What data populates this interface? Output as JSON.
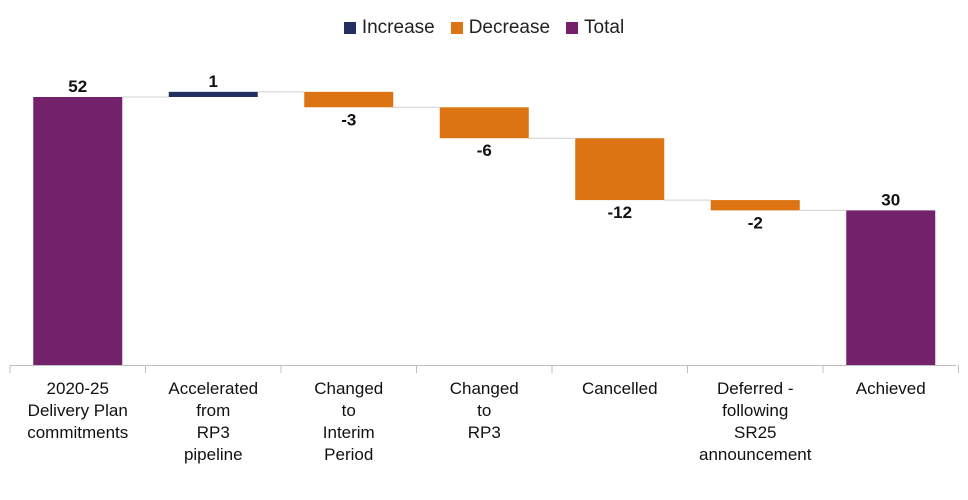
{
  "chart_data": {
    "type": "waterfall",
    "title": "",
    "xlabel": "",
    "ylabel": "",
    "ylim": [
      0,
      60
    ],
    "grid": false,
    "legend_position": "top-center",
    "legend": [
      {
        "name": "Increase",
        "color": "#232e63"
      },
      {
        "name": "Decrease",
        "color": "#dc7414"
      },
      {
        "name": "Total",
        "color": "#74216c"
      }
    ],
    "categories": [
      [
        "2020-25",
        "Delivery Plan",
        "commitments"
      ],
      [
        "Accelerated",
        "from",
        "RP3",
        "pipeline"
      ],
      [
        "Changed",
        "to",
        "Interim",
        "Period"
      ],
      [
        "Changed",
        "to",
        "RP3"
      ],
      [
        "Cancelled"
      ],
      [
        "Deferred -",
        "following",
        "SR25",
        "announcement"
      ],
      [
        "Achieved"
      ]
    ],
    "bars": [
      {
        "kind": "total",
        "value": 52,
        "label": "52"
      },
      {
        "kind": "increase",
        "value": 1,
        "label": "1"
      },
      {
        "kind": "decrease",
        "value": -3,
        "label": "-3"
      },
      {
        "kind": "decrease",
        "value": -6,
        "label": "-6"
      },
      {
        "kind": "decrease",
        "value": -12,
        "label": "-12"
      },
      {
        "kind": "decrease",
        "value": -2,
        "label": "-2"
      },
      {
        "kind": "total",
        "value": 30,
        "label": "30"
      }
    ]
  }
}
